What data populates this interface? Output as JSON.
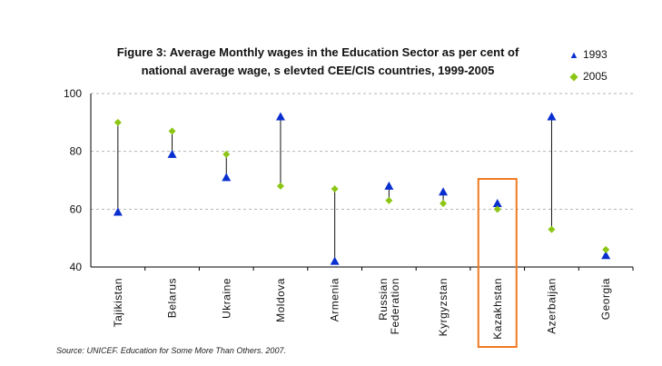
{
  "chart_data": {
    "type": "scatter",
    "title": "Figure 3: Average Monthly wages  in the Education Sector as  per cent of",
    "subtitle": "national average wage, s elevted CEE/CIS  countries, 1999-2005",
    "categories": [
      "Tajikistan",
      "Belarus",
      "Ukraine",
      "Moldova",
      "Armenia",
      "Russian\nFederation",
      "Kyrgyzstan",
      "Kazakhstan",
      "Azerbaijan",
      "Georgia"
    ],
    "series": [
      {
        "name": "1993",
        "marker": "triangle",
        "color": "#0a2fd0",
        "values": [
          59,
          79,
          71,
          92,
          42,
          68,
          66,
          62,
          92,
          44
        ]
      },
      {
        "name": "2005",
        "marker": "diamond",
        "color": "#8cc614",
        "values": [
          90,
          87,
          79,
          68,
          67,
          63,
          62,
          60,
          53,
          46
        ]
      }
    ],
    "ylim": [
      40,
      100
    ],
    "yticks": [
      40,
      60,
      80,
      100
    ],
    "grid": "dashed horizontal",
    "legend": "top-right",
    "highlight": {
      "category": "Kazakhstan",
      "color": "#f07a22"
    }
  },
  "source": "Source: UNICEF. Education for Some More Than Others. 2007."
}
